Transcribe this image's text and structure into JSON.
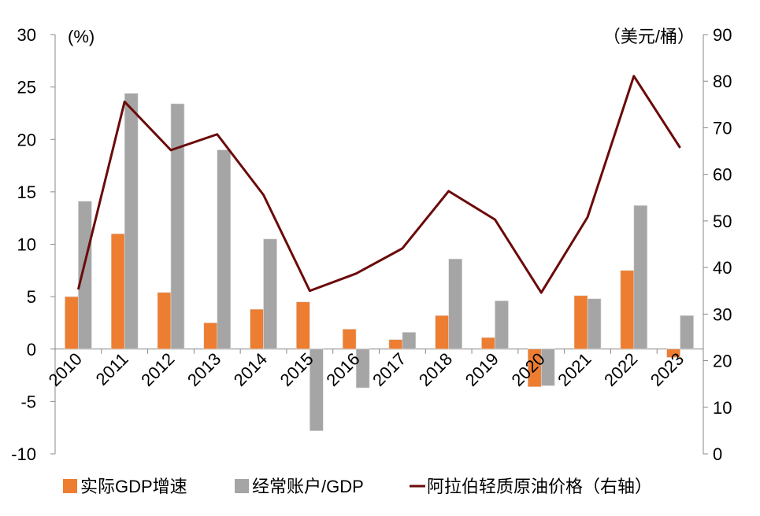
{
  "chart_data": {
    "type": "bar+line",
    "categories": [
      "2010",
      "2011",
      "2012",
      "2013",
      "2014",
      "2015",
      "2016",
      "2017",
      "2018",
      "2019",
      "2020",
      "2021",
      "2022",
      "2023"
    ],
    "series": [
      {
        "name": "实际GDP增速",
        "type": "bar",
        "axis": "left",
        "color": "#ED7D31",
        "values": [
          5.0,
          11.0,
          5.4,
          2.5,
          3.8,
          4.5,
          1.9,
          0.9,
          3.2,
          1.1,
          -3.6,
          5.1,
          7.5,
          -0.8
        ]
      },
      {
        "name": "经常账户/GDP",
        "type": "bar",
        "axis": "left",
        "color": "#A5A5A5",
        "values": [
          14.1,
          24.4,
          23.4,
          19.0,
          10.5,
          -7.8,
          -3.7,
          1.6,
          8.6,
          4.6,
          -3.5,
          4.8,
          13.7,
          3.2
        ]
      },
      {
        "name": "阿拉伯轻质原油价格（右轴）",
        "type": "line",
        "axis": "right",
        "color": "#6B0A0A",
        "values": [
          35.3,
          75.6,
          65.2,
          68.6,
          55.6,
          35.0,
          38.7,
          44.1,
          56.4,
          50.3,
          34.6,
          50.8,
          81.1,
          65.7
        ]
      }
    ],
    "left_axis": {
      "unit_label": "(%)",
      "range": [
        -10,
        30
      ],
      "ticks": [
        "30",
        "25",
        "20",
        "15",
        "10",
        "5",
        "0",
        "-5",
        "-10"
      ]
    },
    "right_axis": {
      "unit_label": "（美元/桶）",
      "range": [
        0,
        90
      ],
      "ticks": [
        "90",
        "80",
        "70",
        "60",
        "50",
        "40",
        "30",
        "20",
        "10",
        "0"
      ]
    },
    "grid": false,
    "legend_position": "bottom"
  }
}
